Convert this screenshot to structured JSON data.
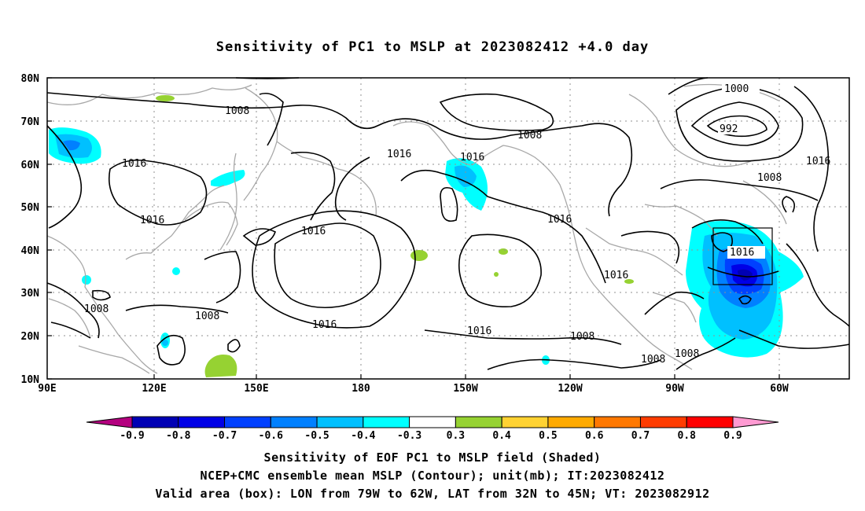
{
  "title": "Sensitivity of PC1 to MSLP at 2023082412 +4.0 day",
  "map": {
    "lat_ticks": [
      "80N",
      "70N",
      "60N",
      "50N",
      "40N",
      "30N",
      "20N",
      "10N"
    ],
    "lon_ticks": [
      "90E",
      "120E",
      "150E",
      "180",
      "150W",
      "120W",
      "90W",
      "60W"
    ],
    "contour_labels": [
      {
        "text": "1008"
      },
      {
        "text": "1016"
      },
      {
        "text": "1016"
      },
      {
        "text": "1016"
      },
      {
        "text": "1016"
      },
      {
        "text": "1016"
      },
      {
        "text": "1008"
      },
      {
        "text": "1008"
      },
      {
        "text": "1016"
      },
      {
        "text": "1008"
      },
      {
        "text": "1016"
      },
      {
        "text": "1016"
      },
      {
        "text": "1016"
      },
      {
        "text": "1008"
      },
      {
        "text": "1000"
      },
      {
        "text": "992"
      },
      {
        "text": "1016"
      },
      {
        "text": "1008"
      },
      {
        "text": "1008"
      },
      {
        "text": "1008"
      },
      {
        "text": "1016"
      }
    ],
    "colors": {
      "contour": "#000000",
      "coast": "#a8a8a8",
      "grid": "#909090",
      "box": "#000000"
    }
  },
  "legend": {
    "labels": [
      "-0.9",
      "-0.8",
      "-0.7",
      "-0.6",
      "-0.5",
      "-0.4",
      "-0.3",
      "0.3",
      "0.4",
      "0.5",
      "0.6",
      "0.7",
      "0.8",
      "0.9"
    ],
    "colors": [
      "#b4007f",
      "#0000b4",
      "#0000e6",
      "#0040ff",
      "#0080ff",
      "#00c0ff",
      "#00ffff",
      "#ffffff",
      "#96d232",
      "#ffd232",
      "#ffaa00",
      "#ff7800",
      "#ff3c00",
      "#ff0000",
      "#ff9ad2"
    ]
  },
  "caption": {
    "line1": "Sensitivity of EOF PC1 to MSLP field (Shaded)",
    "line2": "NCEP+CMC ensemble mean MSLP (Contour); unit(mb); IT:2023082412",
    "line3": "Valid area (box): LON from 79W to 62W, LAT from 32N to 45N; VT: 2023082912"
  }
}
